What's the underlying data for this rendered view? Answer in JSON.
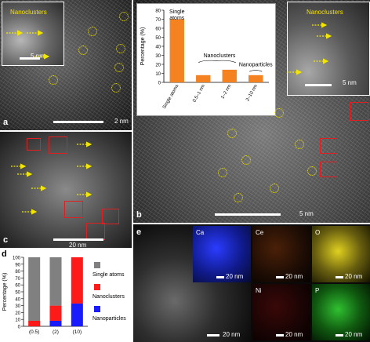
{
  "panels": {
    "a": {
      "label": "a",
      "inset_title": "Nanoclusters",
      "inset_scale": "5 nm",
      "scale": "2 nm"
    },
    "b": {
      "label": "b",
      "inset_title": "Nanoclusters",
      "inset_scale": "5 nm",
      "scale": "5 nm"
    },
    "c": {
      "label": "c",
      "scale": "20 nm"
    },
    "d": {
      "label": "d"
    },
    "e": {
      "label": "e",
      "main_scale": "20 nm",
      "maps": [
        {
          "element": "Ca",
          "scale": "20 nm",
          "color": "#2a3cff"
        },
        {
          "element": "Ce",
          "scale": "20 nm",
          "color": "#e07020"
        },
        {
          "element": "O",
          "scale": "20 nm",
          "color": "#e0d020"
        },
        {
          "element": "Ni",
          "scale": "20 nm",
          "color": "#e02020"
        },
        {
          "element": "P",
          "scale": "20 nm",
          "color": "#30c030"
        }
      ]
    }
  },
  "chart_data": [
    {
      "type": "bar",
      "categories": [
        "Single atoms",
        "0.5–1 nm",
        "1–2 nm",
        "2–10 nm"
      ],
      "values": [
        70,
        8,
        14,
        8
      ],
      "ylabel": "Percentage (%)",
      "ylim": [
        0,
        80
      ],
      "yticks": [
        0,
        10,
        20,
        30,
        40,
        50,
        60,
        70,
        80
      ],
      "annotations": [
        "Single atoms",
        "Nanoclusters",
        "Nanoparticles"
      ],
      "bar_color": "#f58220"
    },
    {
      "type": "bar",
      "stacked": true,
      "categories": [
        "(0.5)",
        "(2)",
        "(10)"
      ],
      "series": [
        {
          "name": "Nanoparticles",
          "values": [
            0,
            8,
            33
          ],
          "color": "#1a1aff"
        },
        {
          "name": "Nanoclusters",
          "values": [
            8,
            22,
            67
          ],
          "color": "#ff1a1a"
        },
        {
          "name": "Single atoms",
          "values": [
            92,
            70,
            0
          ],
          "color": "#808080"
        }
      ],
      "ylabel": "Percentage (%)",
      "ylim": [
        0,
        100
      ],
      "yticks": [
        0,
        10,
        20,
        30,
        40,
        50,
        60,
        70,
        80,
        90,
        100
      ],
      "legend_position": "right"
    }
  ]
}
